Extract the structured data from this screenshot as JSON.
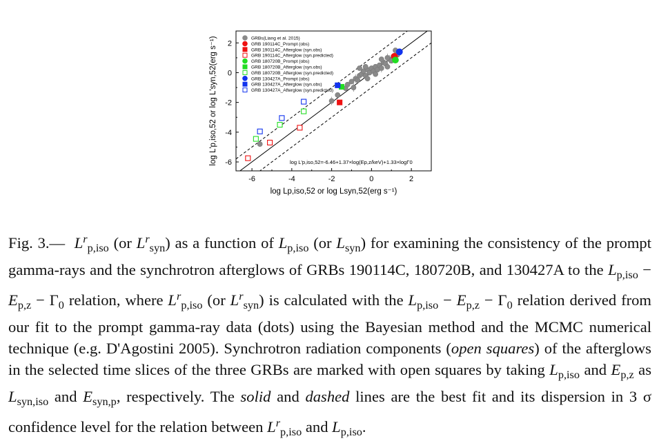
{
  "figure": {
    "y_axis_label": "log L'p,iso,52 or log L'syn,52(erg s⁻¹)",
    "x_axis_label": "log Lp,iso,52 or log Lsyn,52(erg s⁻¹)",
    "fit_equation": "log L'p,iso,52=-6.46+1.37×log(Ep,z/keV)+1.33×logΓ0",
    "colors": {
      "gray": "#8a8a8a",
      "red": "#ee1111",
      "green": "#22dd22",
      "blue": "#1133ee"
    }
  },
  "chart_data": {
    "type": "scatter",
    "xlabel": "log Lp,iso,52 or log Lsyn,52(erg s⁻¹)",
    "ylabel": "log L'p,iso,52 or log L'syn,52(erg s⁻¹)",
    "xlim": [
      -6.8,
      3.0
    ],
    "ylim": [
      -6.6,
      2.8
    ],
    "x_ticks": [
      -6,
      -4,
      -2,
      0,
      2
    ],
    "y_ticks": [
      -6,
      -4,
      -2,
      0,
      2
    ],
    "fit_line": {
      "slope": 1.0,
      "intercept": 0.0
    },
    "dispersion_3sigma": 1.0,
    "legend": [
      {
        "label": "GRBs(Liang et al. 2015)",
        "marker": "circle",
        "filled": true,
        "color": "#8a8a8a"
      },
      {
        "label": "GRB 190114C_Prompt (obs)",
        "marker": "circle",
        "filled": true,
        "color": "#ee1111"
      },
      {
        "label": "GRB 190114C_Afterglow (syn.obs)",
        "marker": "square",
        "filled": true,
        "color": "#ee1111"
      },
      {
        "label": "GRB 190114C_Afterglow (syn.predicted)",
        "marker": "square",
        "filled": false,
        "color": "#ee1111"
      },
      {
        "label": "GRB 180720B_Prompt (obs)",
        "marker": "circle",
        "filled": true,
        "color": "#22dd22"
      },
      {
        "label": "GRB 180720B_Afterglow (syn.obs)",
        "marker": "square",
        "filled": true,
        "color": "#22dd22"
      },
      {
        "label": "GRB 180720B_Afterglow (syn.predicted)",
        "marker": "square",
        "filled": false,
        "color": "#22dd22"
      },
      {
        "label": "GRB 130427A_Prompt (obs)",
        "marker": "circle",
        "filled": true,
        "color": "#1133ee"
      },
      {
        "label": "GRB 130427A_Afterglow (syn.obs)",
        "marker": "square",
        "filled": true,
        "color": "#1133ee"
      },
      {
        "label": "GRB 130427A_Afterglow (syn.predicted)",
        "marker": "square",
        "filled": false,
        "color": "#1133ee"
      }
    ],
    "series": [
      {
        "name": "GRBs(Liang et al. 2015)",
        "marker": "circle",
        "filled": true,
        "color": "#8a8a8a",
        "points": [
          [
            -2.0,
            -1.9
          ],
          [
            -1.3,
            -1.05
          ],
          [
            -1.2,
            -0.8
          ],
          [
            -1.0,
            -0.6
          ],
          [
            -0.8,
            -0.4
          ],
          [
            -0.6,
            -0.2
          ],
          [
            -0.5,
            -0.1
          ],
          [
            -0.4,
            0.1
          ],
          [
            -0.3,
            -0.2
          ],
          [
            -0.2,
            0.2
          ],
          [
            -0.1,
            0.0
          ],
          [
            0.0,
            0.3
          ],
          [
            0.1,
            0.1
          ],
          [
            0.2,
            0.4
          ],
          [
            0.3,
            0.2
          ],
          [
            0.4,
            0.5
          ],
          [
            0.5,
            0.3
          ],
          [
            0.6,
            0.7
          ],
          [
            0.7,
            0.6
          ],
          [
            0.8,
            0.4
          ],
          [
            0.9,
            0.9
          ],
          [
            1.0,
            0.8
          ],
          [
            1.1,
            1.1
          ],
          [
            1.2,
            1.5
          ],
          [
            -0.7,
            -0.5
          ],
          [
            -0.2,
            -0.4
          ],
          [
            0.2,
            -0.1
          ],
          [
            -5.6,
            -4.8
          ],
          [
            -0.9,
            -1.0
          ],
          [
            -1.7,
            -1.5
          ],
          [
            1.3,
            1.2
          ],
          [
            0.5,
            0.9
          ],
          [
            0.8,
            1.0
          ],
          [
            -0.3,
            0.4
          ],
          [
            -0.6,
            0.3
          ]
        ]
      },
      {
        "name": "GRB 190114C_Prompt (obs)",
        "marker": "circle",
        "filled": true,
        "color": "#ee1111",
        "points": [
          [
            1.15,
            1.1
          ]
        ]
      },
      {
        "name": "GRB 190114C_Afterglow (syn.obs)",
        "marker": "square",
        "filled": true,
        "color": "#ee1111",
        "points": [
          [
            -1.6,
            -2.0
          ]
        ]
      },
      {
        "name": "GRB 190114C_Afterglow (syn.predicted)",
        "marker": "square",
        "filled": false,
        "color": "#ee1111",
        "points": [
          [
            -6.2,
            -5.75
          ],
          [
            -5.1,
            -4.7
          ],
          [
            -3.6,
            -3.7
          ]
        ]
      },
      {
        "name": "GRB 180720B_Prompt (obs)",
        "marker": "circle",
        "filled": true,
        "color": "#22dd22",
        "points": [
          [
            1.2,
            0.85
          ]
        ]
      },
      {
        "name": "GRB 180720B_Afterglow (syn.obs)",
        "marker": "square",
        "filled": true,
        "color": "#22dd22",
        "points": [
          [
            -1.5,
            -0.95
          ]
        ]
      },
      {
        "name": "GRB 180720B_Afterglow (syn.predicted)",
        "marker": "square",
        "filled": false,
        "color": "#22dd22",
        "points": [
          [
            -5.8,
            -4.45
          ],
          [
            -4.6,
            -3.5
          ],
          [
            -3.4,
            -2.6
          ]
        ]
      },
      {
        "name": "GRB 130427A_Prompt (obs)",
        "marker": "circle",
        "filled": true,
        "color": "#1133ee",
        "points": [
          [
            1.4,
            1.4
          ]
        ]
      },
      {
        "name": "GRB 130427A_Afterglow (syn.obs)",
        "marker": "square",
        "filled": true,
        "color": "#1133ee",
        "points": [
          [
            -1.7,
            -0.85
          ]
        ]
      },
      {
        "name": "GRB 130427A_Afterglow (syn.predicted)",
        "marker": "square",
        "filled": false,
        "color": "#1133ee",
        "points": [
          [
            -5.6,
            -3.95
          ],
          [
            -4.5,
            -3.05
          ],
          [
            -3.4,
            -1.95
          ]
        ]
      }
    ]
  },
  "caption": {
    "label": "Fig. 3.—",
    "parts": [
      " as a function of ",
      " for examining the consistency of the prompt gamma-rays and the synchrotron afterglows of GRBs 190114C, 180720B, and 130427A to the ",
      " relation, where ",
      " is calculated with the ",
      " relation derived from our fit to the prompt gamma-ray data (dots) using the Bayesian method and the MCMC numerical technique (e.g. D'Agostini 2005). Synchrotron radiation components (",
      ") of the afterglows in the selected time slices of the three GRBs are marked with open squares by taking ",
      ", respectively. The ",
      " and ",
      " lines are the best fit and its dispersion in 3 σ confidence level for the relation between "
    ],
    "open_squares": "open squares",
    "solid": "solid",
    "dashed": "dashed",
    "and": " and ",
    "as": " as ",
    "or_open": " (or ",
    "close_paren": ")",
    "relation_symbols": "Lp,iso − Ep,z − Γ0",
    "sym_L": "L",
    "sym_E": "E",
    "sub_piso": "p,iso",
    "sub_syn": "syn",
    "sub_pz": "p,z",
    "sub_syniso": "syn,iso",
    "sub_synp": "syn,p",
    "sup_r": "r",
    "gamma0": "Γ",
    "sub_0": "0",
    "minus": " − ",
    "end": "."
  }
}
